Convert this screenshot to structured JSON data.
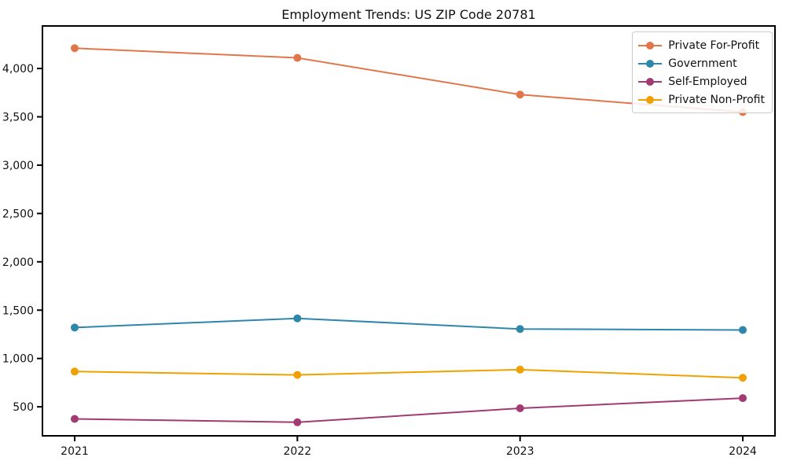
{
  "title": "Employment Trends: US ZIP Code 20781",
  "chart_data": {
    "type": "line",
    "title": "Employment Trends: US ZIP Code 20781",
    "xlabel": "",
    "ylabel": "",
    "categories": [
      "2021",
      "2022",
      "2023",
      "2024"
    ],
    "x": [
      2021,
      2022,
      2023,
      2024
    ],
    "series": [
      {
        "name": "Private For-Profit",
        "color": "#E2764B",
        "values": [
          4210,
          4110,
          3730,
          3550
        ]
      },
      {
        "name": "Government",
        "color": "#2E86AB",
        "values": [
          1320,
          1415,
          1305,
          1295
        ]
      },
      {
        "name": "Self-Employed",
        "color": "#A23B72",
        "values": [
          375,
          340,
          485,
          590
        ]
      },
      {
        "name": "Private Non-Profit",
        "color": "#F0A000",
        "values": [
          865,
          830,
          885,
          800
        ]
      }
    ],
    "ylim": [
      200,
      4440
    ],
    "yticks": [
      500,
      1000,
      1500,
      2000,
      2500,
      3000,
      3500,
      4000
    ],
    "ytick_labels": [
      "500",
      "1,000",
      "1,500",
      "2,000",
      "2,500",
      "3,000",
      "3,500",
      "4,000"
    ],
    "grid": false,
    "legend_position": "upper right",
    "marker": "circle",
    "axis_color": "#000000",
    "text_color": "#111111"
  }
}
